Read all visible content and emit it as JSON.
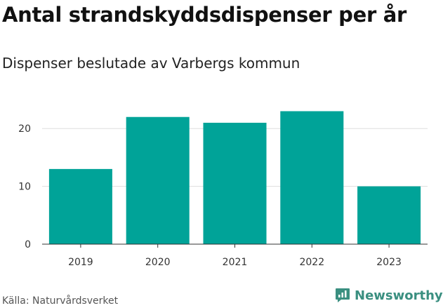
{
  "title": "Antal strandskyddsdispenser per år",
  "subtitle": "Dispenser beslutade av Varbergs kommun",
  "source": "Källa: Naturvårdsverket",
  "brand": {
    "name": "Newsworthy",
    "color": "#3a8f80"
  },
  "colors": {
    "bar": "#00a398",
    "grid": "#dddddd",
    "axis": "#333333"
  },
  "chart_data": {
    "type": "bar",
    "title": "Antal strandskyddsdispenser per år",
    "xlabel": "",
    "ylabel": "",
    "categories": [
      "2019",
      "2020",
      "2021",
      "2022",
      "2023"
    ],
    "values": [
      13,
      22,
      21,
      23,
      10
    ],
    "ylim": [
      0,
      25
    ],
    "yticks": [
      0,
      10,
      20
    ],
    "grid": true
  }
}
